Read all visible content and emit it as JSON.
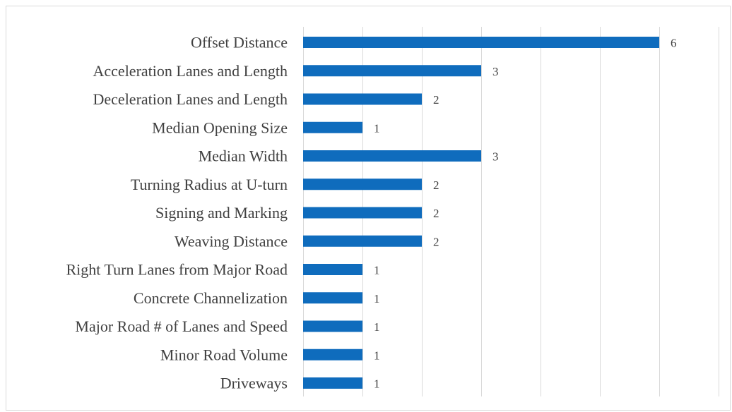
{
  "chart_data": {
    "type": "bar",
    "orientation": "horizontal",
    "categories": [
      "Offset Distance",
      "Acceleration Lanes and Length",
      "Deceleration Lanes and Length",
      "Median Opening Size",
      "Median Width",
      "Turning Radius at U-turn",
      "Signing and Marking",
      "Weaving Distance",
      "Right Turn Lanes from Major Road",
      "Concrete Channelization",
      "Major Road # of Lanes and Speed",
      "Minor Road Volume",
      "Driveways"
    ],
    "values": [
      6,
      3,
      2,
      1,
      3,
      2,
      2,
      2,
      1,
      1,
      1,
      1,
      1
    ],
    "xlim": [
      0,
      7
    ],
    "grid": true,
    "bar_color": "#0f6cbd",
    "data_labels": true,
    "title": "",
    "xlabel": "",
    "ylabel": ""
  }
}
